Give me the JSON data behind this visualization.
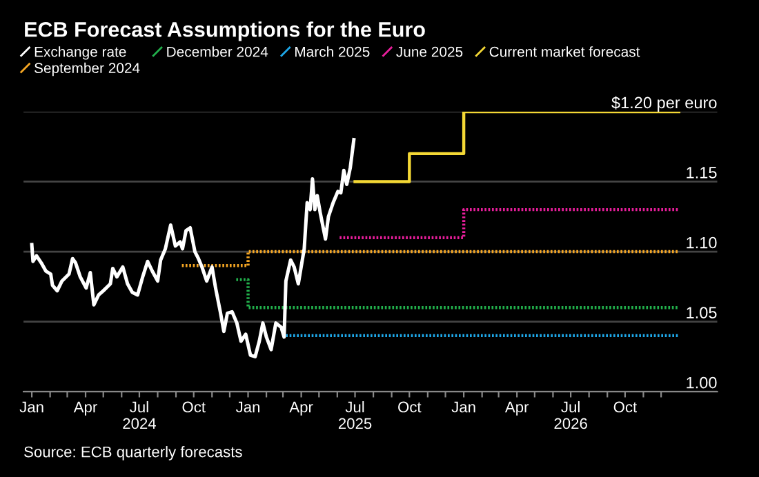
{
  "chart_data": {
    "type": "line",
    "title": "ECB Forecast Assumptions for the Euro",
    "annotations": [
      "Source: ECB quarterly forecasts"
    ],
    "xlim": [
      "2023-12-18",
      "2027-03-06"
    ],
    "ylim": [
      1.0,
      1.2
    ],
    "yticks": [
      {
        "value": 1.0,
        "label": "1.00"
      },
      1.05,
      {
        "value": 1.1,
        "label": "1.10"
      },
      1.15,
      {
        "value": 1.2,
        "label": "$1.20 per euro"
      }
    ],
    "xticks": [
      {
        "value": "2024-01-01",
        "label": "Jan"
      },
      {
        "value": "2024-02-01",
        "label": null
      },
      {
        "value": "2024-03-01",
        "label": null
      },
      {
        "value": "2024-04-01",
        "label": "Apr"
      },
      {
        "value": "2024-05-01",
        "label": null
      },
      {
        "value": "2024-06-01",
        "label": null
      },
      {
        "value": "2024-07-01",
        "label": "Jul\n2024"
      },
      {
        "value": "2024-08-01",
        "label": null
      },
      {
        "value": "2024-09-01",
        "label": null
      },
      {
        "value": "2024-10-01",
        "label": "Oct"
      },
      {
        "value": "2024-11-01",
        "label": null
      },
      {
        "value": "2024-12-01",
        "label": null
      },
      {
        "value": "2025-01-01",
        "label": "Jan"
      },
      {
        "value": "2025-02-01",
        "label": null
      },
      {
        "value": "2025-03-01",
        "label": null
      },
      {
        "value": "2025-04-01",
        "label": "Apr"
      },
      {
        "value": "2025-05-01",
        "label": null
      },
      {
        "value": "2025-06-01",
        "label": null
      },
      {
        "value": "2025-07-01",
        "label": "Jul\n2025"
      },
      {
        "value": "2025-08-01",
        "label": null
      },
      {
        "value": "2025-09-01",
        "label": null
      },
      {
        "value": "2025-10-01",
        "label": "Oct"
      },
      {
        "value": "2025-11-01",
        "label": null
      },
      {
        "value": "2025-12-01",
        "label": null
      },
      {
        "value": "2026-01-01",
        "label": "Jan"
      },
      {
        "value": "2026-02-01",
        "label": null
      },
      {
        "value": "2026-03-01",
        "label": null
      },
      {
        "value": "2026-04-01",
        "label": "Apr"
      },
      {
        "value": "2026-05-01",
        "label": null
      },
      {
        "value": "2026-06-01",
        "label": null
      },
      {
        "value": "2026-07-01",
        "label": "Jul\n2026"
      },
      {
        "value": "2026-08-01",
        "label": null
      },
      {
        "value": "2026-09-01",
        "label": null
      },
      {
        "value": "2026-10-01",
        "label": "Oct"
      },
      {
        "value": "2026-11-01",
        "label": null
      },
      {
        "value": "2026-12-01",
        "label": null
      }
    ],
    "grid": "y",
    "legend": "top left",
    "marker": "none",
    "series": [
      {
        "name": "Exchange rate",
        "color": "#ffffff",
        "line_style": "solid",
        "x": [
          "2024-01-01",
          "2024-01-03",
          "2024-01-09",
          "2024-01-17",
          "2024-01-25",
          "2024-02-02",
          "2024-02-05",
          "2024-02-13",
          "2024-02-21",
          "2024-03-04",
          "2024-03-10",
          "2024-03-15",
          "2024-03-23",
          "2024-04-02",
          "2024-04-09",
          "2024-04-15",
          "2024-04-23",
          "2024-05-01",
          "2024-05-13",
          "2024-05-17",
          "2024-05-24",
          "2024-06-03",
          "2024-06-11",
          "2024-06-19",
          "2024-06-28",
          "2024-07-06",
          "2024-07-15",
          "2024-07-23",
          "2024-08-01",
          "2024-08-06",
          "2024-08-14",
          "2024-08-23",
          "2024-08-31",
          "2024-09-08",
          "2024-09-12",
          "2024-09-18",
          "2024-09-25",
          "2024-10-03",
          "2024-10-09",
          "2024-10-15",
          "2024-10-23",
          "2024-11-01",
          "2024-11-07",
          "2024-11-15",
          "2024-11-21",
          "2024-11-27",
          "2024-12-05",
          "2024-12-13",
          "2024-12-20",
          "2024-12-28",
          "2025-01-05",
          "2025-01-13",
          "2025-01-20",
          "2025-01-26",
          "2025-02-01",
          "2025-02-09",
          "2025-02-17",
          "2025-02-26",
          "2025-03-03",
          "2025-03-06",
          "2025-03-14",
          "2025-03-20",
          "2025-03-27",
          "2025-04-02",
          "2025-04-06",
          "2025-04-11",
          "2025-04-16",
          "2025-04-20",
          "2025-04-24",
          "2025-04-28",
          "2025-05-03",
          "2025-05-12",
          "2025-05-17",
          "2025-05-25",
          "2025-06-02",
          "2025-06-07",
          "2025-06-12",
          "2025-06-17",
          "2025-06-23",
          "2025-06-29"
        ],
        "values": [
          1.105,
          1.093,
          1.097,
          1.092,
          1.086,
          1.084,
          1.076,
          1.072,
          1.079,
          1.084,
          1.095,
          1.092,
          1.082,
          1.074,
          1.085,
          1.062,
          1.069,
          1.072,
          1.077,
          1.088,
          1.082,
          1.089,
          1.077,
          1.071,
          1.069,
          1.081,
          1.093,
          1.086,
          1.079,
          1.094,
          1.102,
          1.119,
          1.104,
          1.107,
          1.102,
          1.115,
          1.117,
          1.1,
          1.095,
          1.089,
          1.079,
          1.089,
          1.074,
          1.057,
          1.043,
          1.056,
          1.057,
          1.049,
          1.036,
          1.041,
          1.026,
          1.025,
          1.036,
          1.049,
          1.039,
          1.03,
          1.049,
          1.046,
          1.039,
          1.079,
          1.094,
          1.089,
          1.077,
          1.092,
          1.102,
          1.135,
          1.13,
          1.152,
          1.13,
          1.14,
          1.128,
          1.109,
          1.125,
          1.135,
          1.143,
          1.142,
          1.158,
          1.148,
          1.16,
          1.18
        ]
      },
      {
        "name": "September 2024",
        "type": "step",
        "color": "#f5a623",
        "line_style": "dotted",
        "x": [
          "2024-09-11",
          "2025-01-01",
          "2026-12-31"
        ],
        "values": [
          1.09,
          1.1,
          1.1
        ]
      },
      {
        "name": "December 2024",
        "type": "step",
        "color": "#22b14c",
        "line_style": "dotted",
        "x": [
          "2024-12-12",
          "2025-01-01",
          "2026-12-31"
        ],
        "values": [
          1.08,
          1.06,
          1.06
        ]
      },
      {
        "name": "March 2025",
        "type": "step",
        "color": "#1ea7e8",
        "line_style": "dotted",
        "x": [
          "2025-03-06",
          "2026-12-31"
        ],
        "values": [
          1.04,
          1.04
        ]
      },
      {
        "name": "June 2025",
        "type": "step",
        "color": "#e91e9c",
        "line_style": "dotted",
        "x": [
          "2025-06-05",
          "2026-01-01",
          "2026-12-31"
        ],
        "values": [
          1.11,
          1.13,
          1.13
        ]
      },
      {
        "name": "Current market forecast",
        "type": "step",
        "color": "#f4d835",
        "line_style": "solid",
        "x": [
          "2025-07-01",
          "2025-10-01",
          "2026-01-01",
          "2026-12-31"
        ],
        "values": [
          1.15,
          1.17,
          1.2,
          1.2
        ]
      }
    ]
  }
}
